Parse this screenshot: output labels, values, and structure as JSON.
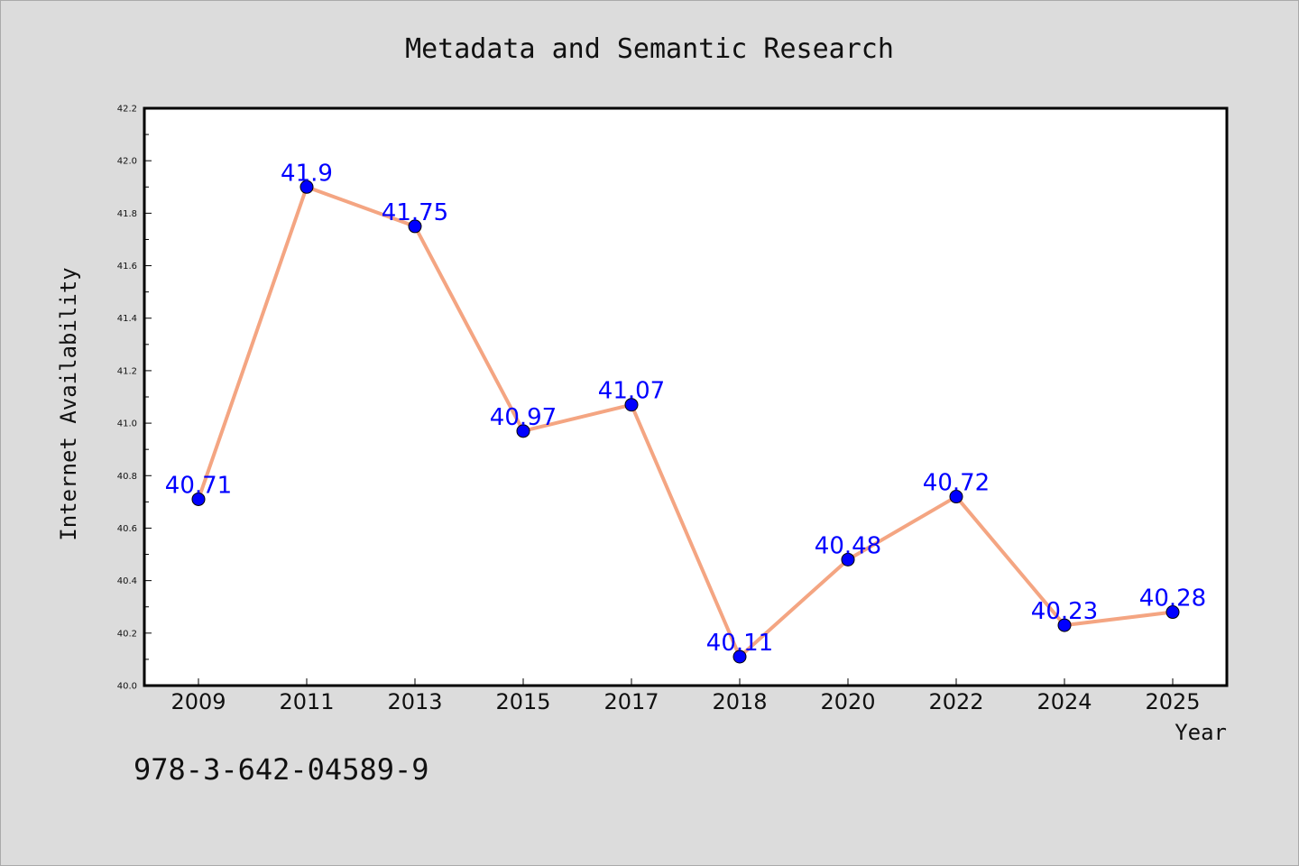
{
  "chart_data": {
    "type": "line",
    "title": "Metadata and Semantic Research",
    "xlabel": "Year",
    "ylabel": "Internet Availability",
    "categories": [
      "2009",
      "2011",
      "2013",
      "2015",
      "2017",
      "2018",
      "2020",
      "2022",
      "2024",
      "2025"
    ],
    "series": [
      {
        "values": [
          40.71,
          41.9,
          41.75,
          40.97,
          41.07,
          40.11,
          40.48,
          40.72,
          40.23,
          40.28
        ]
      }
    ],
    "data_labels": [
      "40.71",
      "41.9",
      "41.75",
      "40.97",
      "41.07",
      "40.11",
      "40.48",
      "40.72",
      "40.23",
      "40.28"
    ],
    "ylim": [
      40.0,
      42.2
    ],
    "yticks": [
      "40.0",
      "40.2",
      "40.4",
      "40.6",
      "40.8",
      "41.0",
      "41.2",
      "41.4",
      "41.6",
      "41.8",
      "42.0",
      "42.2"
    ],
    "grid": false,
    "line_color": "#f4a582",
    "marker_color": "#0000ff",
    "label_color": "#0000ff"
  },
  "footer": {
    "text": "978-3-642-04589-9"
  }
}
